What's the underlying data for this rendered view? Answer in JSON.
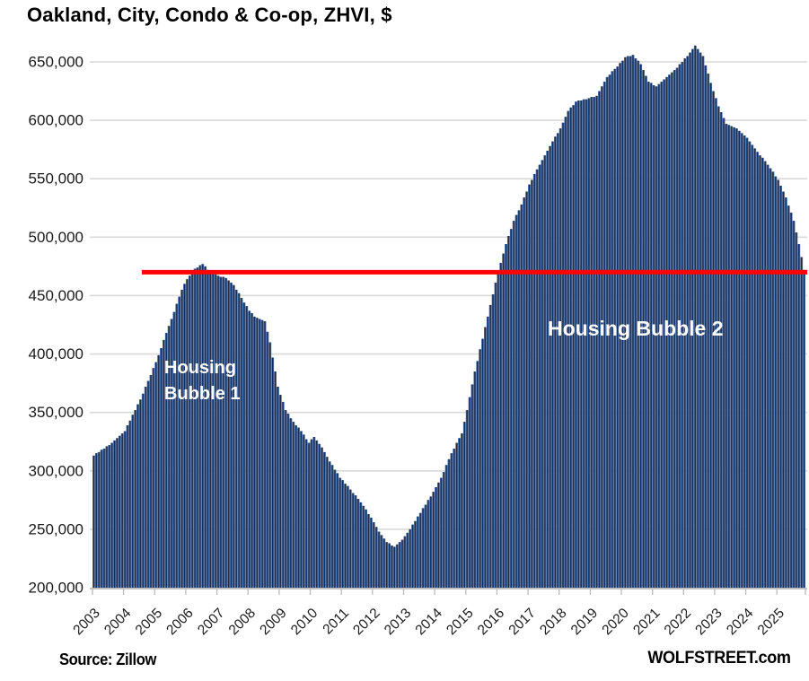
{
  "title": "Oakland, City, Condo & Co-op, ZHVI, $",
  "source": "Source: Zillow",
  "branding": "WOLFSTREET.com",
  "annotations": {
    "bubble1_line1": "Housing",
    "bubble1_line2": "Bubble 1",
    "bubble2": "Housing Bubble 2"
  },
  "colors": {
    "background": "#ffffff",
    "bar_fill": "#1f2c47",
    "bar_stripe": "#4a70ad",
    "gridline": "#d9d9d9",
    "axis_line": "#bfbfbf",
    "reference_line": "#fe0000",
    "annotation_text": "#ffffff",
    "label_text": "#1a1a1a"
  },
  "chart_data": {
    "type": "bar",
    "title": "Oakland, City, Condo & Co-op, ZHVI, $",
    "ylabel": "ZHVI, $",
    "xlabel": "",
    "unit": "USD",
    "frequency": "monthly",
    "x_start": "2003-01",
    "x_end": "2025-11",
    "grid": "horizontal",
    "legend": "none",
    "x_tick_labels": [
      "2003",
      "2004",
      "2005",
      "2006",
      "2007",
      "2008",
      "2009",
      "2010",
      "2011",
      "2012",
      "2013",
      "2014",
      "2015",
      "2016",
      "2017",
      "2018",
      "2019",
      "2020",
      "2021",
      "2022",
      "2023",
      "2024",
      "2025"
    ],
    "y_ticks": [
      200000,
      250000,
      300000,
      350000,
      400000,
      450000,
      500000,
      550000,
      600000,
      650000
    ],
    "ylim": [
      200000,
      670000
    ],
    "reference_line": {
      "value": 470000,
      "color": "#fe0000",
      "start_month_index": 19
    },
    "values": [
      313000,
      315000,
      316000,
      318000,
      319000,
      321000,
      322000,
      324000,
      326000,
      328000,
      330000,
      332000,
      334000,
      339000,
      343000,
      348000,
      352000,
      357000,
      361000,
      366000,
      372000,
      377000,
      382000,
      388000,
      393000,
      399000,
      405000,
      412000,
      418000,
      424000,
      430000,
      436000,
      443000,
      449000,
      455000,
      460000,
      464000,
      467000,
      470000,
      473000,
      474000,
      476000,
      477000,
      475000,
      472000,
      470000,
      469000,
      468000,
      467000,
      466000,
      466000,
      465000,
      463000,
      461000,
      459000,
      455000,
      452000,
      448000,
      444000,
      441000,
      437000,
      435000,
      432000,
      431000,
      430000,
      429000,
      428000,
      419000,
      410000,
      397000,
      385000,
      372000,
      365000,
      359000,
      352000,
      349000,
      345000,
      342000,
      339000,
      337000,
      334000,
      331000,
      327000,
      324000,
      327000,
      329000,
      326000,
      323000,
      320000,
      316000,
      312000,
      308000,
      305000,
      301000,
      298000,
      294000,
      292000,
      289000,
      287000,
      284000,
      281000,
      279000,
      276000,
      273000,
      270000,
      267000,
      263000,
      260000,
      256000,
      252000,
      248000,
      245000,
      242000,
      239000,
      238000,
      236000,
      235000,
      237000,
      239000,
      241000,
      244000,
      247000,
      250000,
      254000,
      257000,
      261000,
      264000,
      268000,
      271000,
      275000,
      278000,
      282000,
      286000,
      290000,
      294000,
      299000,
      305000,
      310000,
      315000,
      319000,
      324000,
      328000,
      332000,
      342000,
      352000,
      363000,
      374000,
      385000,
      394000,
      404000,
      413000,
      423000,
      432000,
      442000,
      451000,
      461000,
      470000,
      478000,
      486000,
      494000,
      501000,
      507000,
      514000,
      519000,
      523000,
      528000,
      534000,
      539000,
      545000,
      549000,
      554000,
      558000,
      562000,
      566000,
      570000,
      574000,
      578000,
      582000,
      586000,
      589000,
      593000,
      598000,
      603000,
      608000,
      611000,
      613000,
      616000,
      617000,
      617000,
      618000,
      618000,
      619000,
      620000,
      620000,
      621000,
      625000,
      629000,
      633000,
      637000,
      639000,
      642000,
      644000,
      646000,
      649000,
      651000,
      654000,
      655000,
      655000,
      656000,
      653000,
      651000,
      648000,
      643000,
      638000,
      633000,
      632000,
      630000,
      629000,
      631000,
      633000,
      635000,
      637000,
      639000,
      641000,
      643000,
      645000,
      648000,
      650000,
      653000,
      655000,
      658000,
      661000,
      664000,
      661000,
      658000,
      655000,
      647000,
      640000,
      632000,
      625000,
      619000,
      612000,
      607000,
      602000,
      597000,
      596000,
      595000,
      594000,
      593000,
      591000,
      589000,
      587000,
      585000,
      582000,
      579000,
      576000,
      573000,
      570000,
      568000,
      565000,
      562000,
      559000,
      556000,
      552000,
      549000,
      544000,
      539000,
      534000,
      527000,
      521000,
      514000,
      504000,
      494000,
      483000,
      472000
    ]
  }
}
